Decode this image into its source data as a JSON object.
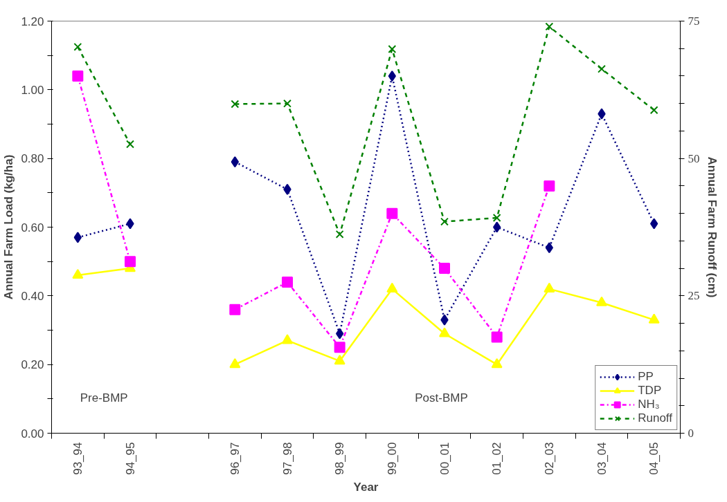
{
  "chart_data": {
    "type": "line",
    "xlabel": "Year",
    "ylabel": "Annual Farm Load (kg/ha)",
    "y2label": "Annual Farm Runoff (cm)",
    "categories": [
      "93_94",
      "94_95",
      null,
      "96_97",
      "97_98",
      "98_99",
      "99_00",
      "00_01",
      "01_02",
      "02_03",
      "03_04",
      "04_05"
    ],
    "series": [
      {
        "name": "PP",
        "color": "#000080",
        "marker": "diamond",
        "line_style": "dotted",
        "values": [
          0.57,
          0.61,
          null,
          0.79,
          0.71,
          0.29,
          1.04,
          0.33,
          0.6,
          0.54,
          0.93,
          0.61
        ]
      },
      {
        "name": "TDP",
        "color": "#ffff00",
        "marker": "triangle",
        "line_style": "solid",
        "values": [
          0.46,
          0.48,
          null,
          0.2,
          0.27,
          0.21,
          0.42,
          0.29,
          0.2,
          0.42,
          0.38,
          0.33
        ]
      },
      {
        "name": "NH₃",
        "color": "#ff00ff",
        "marker": "square",
        "line_style": "dashdot",
        "values": [
          1.04,
          0.5,
          null,
          0.36,
          0.44,
          0.25,
          0.64,
          0.48,
          0.28,
          0.72,
          null,
          null
        ]
      },
      {
        "name": "Runoff",
        "color": "#008000",
        "marker": "cross",
        "line_style": "dashed",
        "axis": "y2",
        "values": [
          70.3,
          52.6,
          null,
          59.9,
          60.0,
          36.2,
          69.9,
          38.5,
          39.2,
          74.0,
          66.3,
          58.8
        ]
      }
    ],
    "ylim": [
      0,
      1.2
    ],
    "yticks": [
      {
        "value": 0,
        "label": "0.00"
      },
      {
        "value": 0.1,
        "label": null
      },
      {
        "value": 0.2,
        "label": "0.20"
      },
      {
        "value": 0.3,
        "label": null
      },
      {
        "value": 0.4,
        "label": "0.40"
      },
      {
        "value": 0.5,
        "label": null
      },
      {
        "value": 0.6,
        "label": "0.60"
      },
      {
        "value": 0.7,
        "label": null
      },
      {
        "value": 0.8,
        "label": "0.80"
      },
      {
        "value": 0.9,
        "label": null
      },
      {
        "value": 1.0,
        "label": "1.00"
      },
      {
        "value": 1.1,
        "label": null
      },
      {
        "value": 1.2,
        "label": "1.20"
      }
    ],
    "y2lim": [
      0,
      75
    ],
    "y2ticks": [
      0,
      {
        "value": 5,
        "label": null
      },
      {
        "value": 10,
        "label": null
      },
      {
        "value": 15,
        "label": null
      },
      {
        "value": 20,
        "label": null
      },
      25,
      {
        "value": 30,
        "label": null
      },
      {
        "value": 35,
        "label": null
      },
      {
        "value": 40,
        "label": null
      },
      {
        "value": 45,
        "label": null
      },
      50,
      {
        "value": 55,
        "label": null
      },
      {
        "value": 60,
        "label": null
      },
      {
        "value": 65,
        "label": null
      },
      {
        "value": 70,
        "label": null
      },
      75
    ],
    "annotations": [
      "Pre-BMP",
      "Post-BMP"
    ],
    "grid": false,
    "legend": "bottom right"
  }
}
